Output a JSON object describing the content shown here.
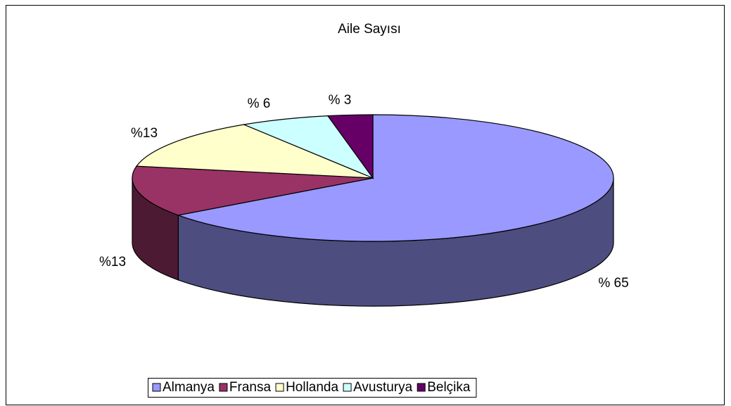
{
  "chart_data": {
    "type": "pie",
    "title": "Aile Sayısı",
    "categories": [
      "Almanya",
      "Fransa",
      "Hollanda",
      "Avusturya",
      "Belçika"
    ],
    "values": [
      65,
      13,
      13,
      6,
      3
    ],
    "value_labels": [
      "% 65",
      "%13",
      "%13",
      "% 6",
      "% 3"
    ],
    "colors": [
      "#9999ff",
      "#993366",
      "#ffffcc",
      "#ccffff",
      "#660066"
    ],
    "legend": "bottom"
  }
}
